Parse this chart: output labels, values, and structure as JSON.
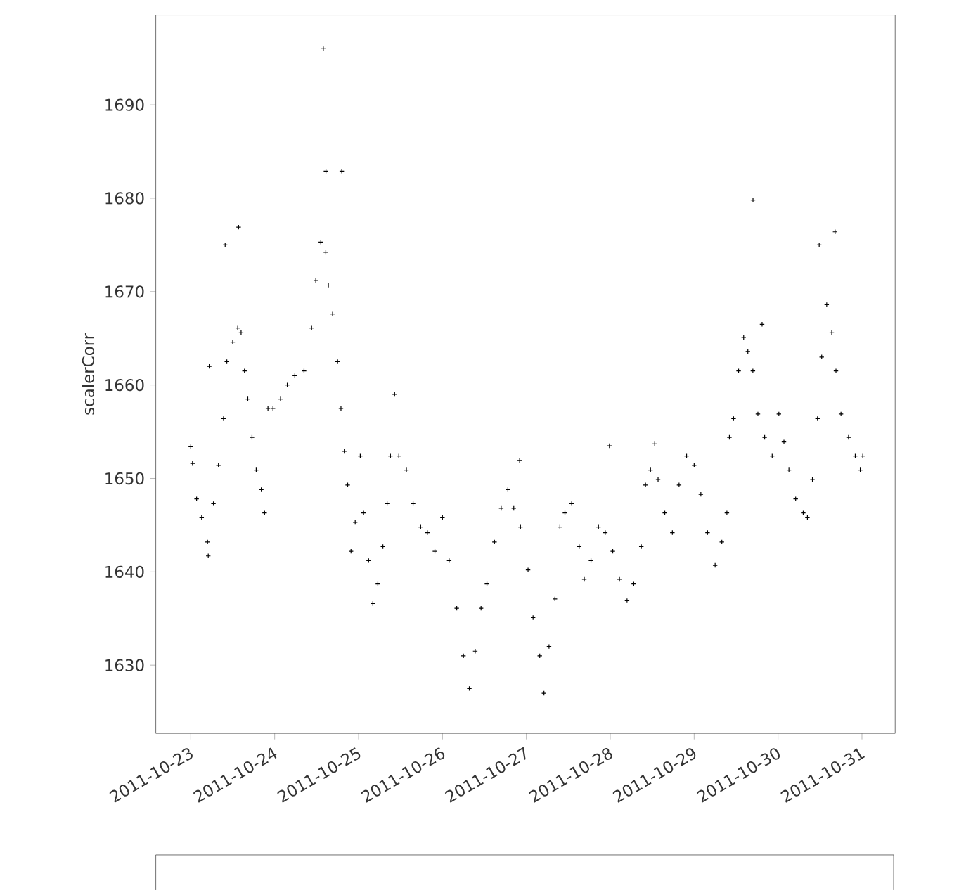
{
  "chart_data": {
    "type": "scatter",
    "ylabel": "scalerCorr",
    "marker": "cross",
    "grid": false,
    "xlim": [
      "2011-10-22T14:00",
      "2011-10-31T09:30"
    ],
    "xticks": [
      "2011-10-23",
      "2011-10-24",
      "2011-10-25",
      "2011-10-26",
      "2011-10-27",
      "2011-10-28",
      "2011-10-29",
      "2011-10-30",
      "2011-10-31"
    ],
    "ylim": [
      1622.7,
      1699.6
    ],
    "yticks": [
      1630,
      1640,
      1650,
      1660,
      1670,
      1680,
      1690
    ],
    "series": [
      {
        "color": "#000000",
        "x": [
          "2011-10-23T00:00",
          "2011-10-23T00:30",
          "2011-10-23T01:40",
          "2011-10-23T03:07",
          "2011-10-23T04:48",
          "2011-10-23T05:00",
          "2011-10-23T06:29",
          "2011-10-23T07:55",
          "2011-10-23T09:22",
          "2011-10-23T10:19",
          "2011-10-23T12:00",
          "2011-10-23T13:26",
          "2011-10-23T14:24",
          "2011-10-23T15:22",
          "2011-10-23T16:19",
          "2011-10-23T17:31",
          "2011-10-23T18:43",
          "2011-10-23T20:10",
          "2011-10-23T21:07",
          "2011-10-23T22:05",
          "2011-10-23T23:31",
          "2011-10-24T01:41",
          "2011-10-24T03:36",
          "2011-10-24T05:46",
          "2011-10-24T08:24",
          "2011-10-24T10:34",
          "2011-10-24T11:46",
          "2011-10-24T13:12",
          "2011-10-24T14:38",
          "2011-10-24T15:22",
          "2011-10-24T16:34",
          "2011-10-24T18:00",
          "2011-10-24T18:58",
          "2011-10-24T19:55",
          "2011-10-24T20:53",
          "2011-10-24T21:50",
          "2011-10-24T23:02",
          "2011-10-25T00:29",
          "2011-10-25T01:26",
          "2011-10-25T02:53",
          "2011-10-25T04:05",
          "2011-10-25T05:31",
          "2011-10-25T06:58",
          "2011-10-25T08:10",
          "2011-10-25T09:07",
          "2011-10-25T10:19",
          "2011-10-25T11:31",
          "2011-10-25T13:41",
          "2011-10-25T15:36",
          "2011-10-25T17:46",
          "2011-10-25T19:41",
          "2011-10-25T21:50",
          "2011-10-26T00:00",
          "2011-10-26T01:55",
          "2011-10-26T04:05",
          "2011-10-26T06:00",
          "2011-10-26T07:41",
          "2011-10-26T09:22",
          "2011-10-26T11:02",
          "2011-10-26T12:43",
          "2011-10-26T14:53",
          "2011-10-26T16:48",
          "2011-10-26T18:43",
          "2011-10-26T20:24",
          "2011-10-26T22:19",
          "2011-10-27T00:29",
          "2011-10-27T01:55",
          "2011-10-27T03:50",
          "2011-10-27T05:02",
          "2011-10-27T06:29",
          "2011-10-27T08:10",
          "2011-10-27T09:36",
          "2011-10-27T11:02",
          "2011-10-27T12:58",
          "2011-10-27T15:07",
          "2011-10-27T16:34",
          "2011-10-27T18:29",
          "2011-10-27T20:38",
          "2011-10-27T22:34",
          "2011-10-28T00:43",
          "2011-10-28T02:38",
          "2011-10-28T04:48",
          "2011-10-28T06:43",
          "2011-10-28T08:53",
          "2011-10-28T10:05",
          "2011-10-28T11:31",
          "2011-10-28T13:41",
          "2011-10-28T15:36",
          "2011-10-28T17:46",
          "2011-10-28T19:41",
          "2011-10-28T21:50",
          "2011-10-29T00:00",
          "2011-10-29T01:55",
          "2011-10-29T03:50",
          "2011-10-29T06:00",
          "2011-10-29T07:55",
          "2011-10-29T09:22",
          "2011-10-29T10:05",
          "2011-10-29T11:17",
          "2011-10-29T12:43",
          "2011-10-29T14:10",
          "2011-10-29T15:22",
          "2011-10-29T16:48",
          "2011-10-29T18:14",
          "2011-10-29T20:10",
          "2011-10-29T22:19",
          "2011-10-30T00:14",
          "2011-10-30T01:41",
          "2011-10-30T03:07",
          "2011-10-30T05:02",
          "2011-10-30T07:12",
          "2011-10-30T08:24",
          "2011-10-30T09:50",
          "2011-10-30T11:17",
          "2011-10-30T12:29",
          "2011-10-30T13:55",
          "2011-10-30T15:22",
          "2011-10-30T16:34",
          "2011-10-30T18:00",
          "2011-10-30T20:10",
          "2011-10-30T22:05",
          "2011-10-30T23:31",
          "2011-10-31T00:14",
          "2011-10-23T05:17",
          "2011-10-23T09:50",
          "2011-10-23T13:41",
          "2011-10-24T13:55",
          "2011-10-24T14:40",
          "2011-10-24T19:12",
          "2011-10-26T22:05",
          "2011-10-27T23:46",
          "2011-10-28T12:43",
          "2011-10-29T16:50",
          "2011-10-29T19:26",
          "2011-10-30T11:46",
          "2011-10-30T16:19"
        ],
        "values": [
          1653.4,
          1651.6,
          1647.8,
          1645.8,
          1643.2,
          1641.7,
          1647.3,
          1651.4,
          1656.4,
          1662.5,
          1664.6,
          1666.1,
          1665.6,
          1661.5,
          1658.5,
          1654.4,
          1650.9,
          1648.8,
          1646.3,
          1657.5,
          1657.5,
          1658.5,
          1660,
          1661,
          1661.5,
          1666.1,
          1671.2,
          1675.3,
          1674.2,
          1670.7,
          1667.6,
          1662.5,
          1657.5,
          1652.9,
          1649.3,
          1642.2,
          1645.3,
          1652.4,
          1646.3,
          1641.2,
          1636.6,
          1638.7,
          1642.7,
          1647.3,
          1652.4,
          1659,
          1652.4,
          1650.9,
          1647.3,
          1644.8,
          1644.2,
          1642.2,
          1645.8,
          1641.2,
          1636.1,
          1631,
          1627.5,
          1631.5,
          1636.1,
          1638.7,
          1643.2,
          1646.8,
          1648.8,
          1646.8,
          1644.8,
          1640.2,
          1635.1,
          1631,
          1627,
          1632,
          1637.1,
          1644.8,
          1646.3,
          1647.3,
          1642.7,
          1639.2,
          1641.2,
          1644.8,
          1644.2,
          1642.2,
          1639.2,
          1636.9,
          1638.7,
          1642.7,
          1649.3,
          1650.9,
          1649.9,
          1646.3,
          1644.2,
          1649.3,
          1652.4,
          1651.4,
          1648.3,
          1644.2,
          1640.7,
          1643.2,
          1646.3,
          1654.4,
          1656.4,
          1661.5,
          1665.1,
          1663.6,
          1661.5,
          1656.9,
          1654.4,
          1652.4,
          1656.9,
          1653.9,
          1650.9,
          1647.8,
          1646.3,
          1645.8,
          1649.9,
          1656.4,
          1663,
          1668.6,
          1665.6,
          1661.5,
          1656.9,
          1654.4,
          1652.4,
          1650.9,
          1652.4,
          1662,
          1675,
          1676.9,
          1696,
          1682.9,
          1682.9,
          1651.9,
          1653.5,
          1653.7,
          1679.8,
          1666.5,
          1675,
          1676.4
        ]
      }
    ]
  }
}
